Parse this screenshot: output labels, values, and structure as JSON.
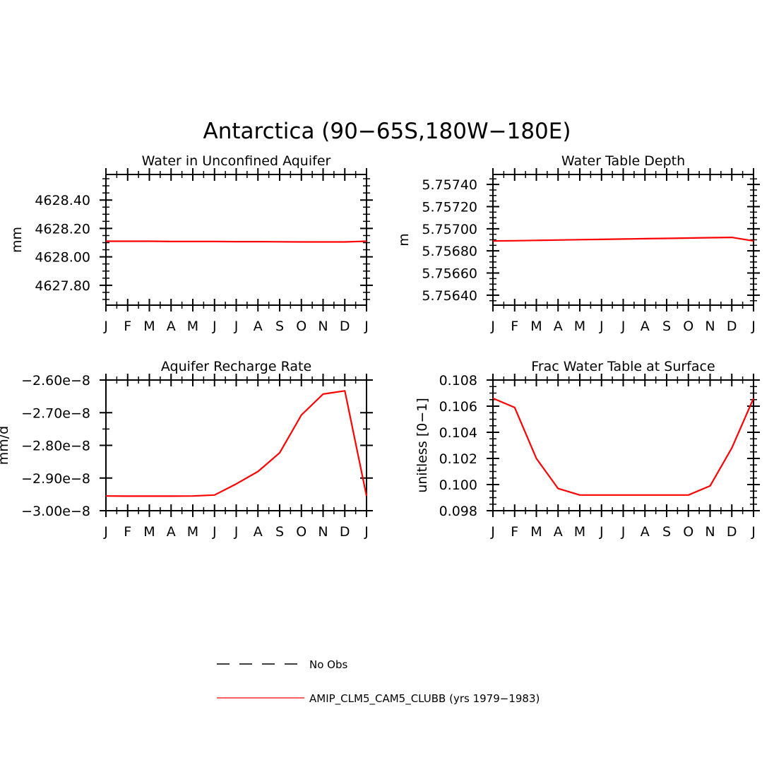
{
  "title": "Antarctica (90−65S,180W−180E)",
  "months": [
    "J",
    "F",
    "M",
    "A",
    "M",
    "J",
    "J",
    "A",
    "S",
    "O",
    "N",
    "D",
    "J"
  ],
  "legend": [
    {
      "label": "No Obs",
      "style": "dashed",
      "color": "#000000"
    },
    {
      "label": "AMIP_CLM5_CAM5_CLUBB (yrs 1979−1983)",
      "style": "solid",
      "color": "#ff0000"
    }
  ],
  "chart_data": [
    {
      "type": "line",
      "title": "Water in Unconfined Aquifer",
      "ylabel": "mm",
      "ylim": [
        4627.66,
        4628.58
      ],
      "yticks": [
        4627.8,
        4628.0,
        4628.2,
        4628.4
      ],
      "yticklabels": [
        "4627.80",
        "4628.00",
        "4628.20",
        "4628.40"
      ],
      "yminor": 0.05,
      "x": [
        "J",
        "F",
        "M",
        "A",
        "M",
        "J",
        "J",
        "A",
        "S",
        "O",
        "N",
        "D",
        "J"
      ],
      "series": [
        {
          "color": "#ff0000",
          "values": [
            4628.11,
            4628.11,
            4628.11,
            4628.108,
            4628.108,
            4628.108,
            4628.107,
            4628.107,
            4628.106,
            4628.105,
            4628.105,
            4628.105,
            4628.11
          ]
        }
      ]
    },
    {
      "type": "line",
      "title": "Water Table Depth",
      "ylabel": "m",
      "ylim": [
        5.75631,
        5.75749
      ],
      "yticks": [
        5.7564,
        5.7566,
        5.7568,
        5.757,
        5.7572,
        5.7574
      ],
      "yticklabels": [
        "5.75640",
        "5.75660",
        "5.75680",
        "5.75700",
        "5.75720",
        "5.75740"
      ],
      "yminor": 5e-05,
      "x": [
        "J",
        "F",
        "M",
        "A",
        "M",
        "J",
        "J",
        "A",
        "S",
        "O",
        "N",
        "D",
        "J"
      ],
      "series": [
        {
          "color": "#ff0000",
          "values": [
            5.75689,
            5.756892,
            5.756895,
            5.756898,
            5.756901,
            5.756904,
            5.756907,
            5.75691,
            5.756913,
            5.756916,
            5.756919,
            5.756922,
            5.75689
          ]
        }
      ]
    },
    {
      "type": "line",
      "title": "Aquifer Recharge Rate",
      "ylabel": "mm/d",
      "ylim": [
        -3e-08,
        -2.6e-08
      ],
      "yticks": [
        -3e-08,
        -2.9e-08,
        -2.8e-08,
        -2.7e-08,
        -2.6e-08
      ],
      "yticklabels": [
        "−3.00e−8",
        "−2.90e−8",
        "−2.80e−8",
        "−2.70e−8",
        "−2.60e−8"
      ],
      "yminor": 2.5e-09,
      "x": [
        "J",
        "F",
        "M",
        "A",
        "M",
        "J",
        "J",
        "A",
        "S",
        "O",
        "N",
        "D",
        "J"
      ],
      "series": [
        {
          "color": "#ff0000",
          "values": [
            -2.955e-08,
            -2.9555e-08,
            -2.9555e-08,
            -2.9555e-08,
            -2.955e-08,
            -2.952e-08,
            -2.918e-08,
            -2.88e-08,
            -2.823e-08,
            -2.707e-08,
            -2.643e-08,
            -2.633e-08,
            -2.955e-08
          ]
        }
      ]
    },
    {
      "type": "line",
      "title": "Frac Water Table at Surface",
      "ylabel": "unitless [0−1]",
      "ylim": [
        0.098,
        0.108
      ],
      "yticks": [
        0.098,
        0.1,
        0.102,
        0.104,
        0.106,
        0.108
      ],
      "yticklabels": [
        "0.098",
        "0.100",
        "0.102",
        "0.104",
        "0.106",
        "0.108"
      ],
      "yminor": 0.0005,
      "x": [
        "J",
        "F",
        "M",
        "A",
        "M",
        "J",
        "J",
        "A",
        "S",
        "O",
        "N",
        "D",
        "J"
      ],
      "series": [
        {
          "color": "#ff0000",
          "values": [
            0.1066,
            0.1059,
            0.102,
            0.0997,
            0.0992,
            0.0992,
            0.0992,
            0.0992,
            0.0992,
            0.0992,
            0.0999,
            0.1028,
            0.1066
          ]
        }
      ]
    }
  ]
}
